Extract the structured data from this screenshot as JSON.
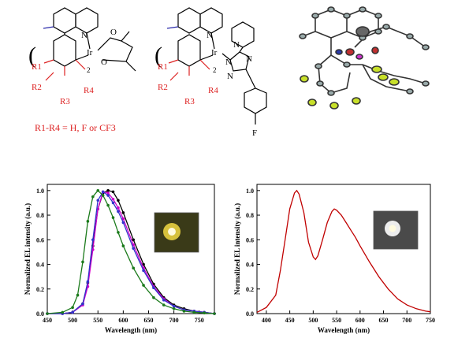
{
  "structures": {
    "left": {
      "atoms": [
        "N",
        "O",
        "O",
        "Ir",
        "2",
        "R1",
        "R2",
        "R3",
        "R4"
      ],
      "caption": "R1-R4 = H, F or CF3"
    },
    "middle": {
      "atoms": [
        "N",
        "N",
        "N",
        "N",
        "N",
        "Ir",
        "2",
        "F",
        "R1",
        "R2",
        "R3",
        "R4"
      ]
    }
  },
  "chart_data": [
    {
      "type": "line",
      "xlabel": "Wavelength (nm)",
      "ylabel": "Normalized EL intensity (a.u.)",
      "xlim": [
        450,
        780
      ],
      "ylim": [
        0,
        1.05
      ],
      "xticks": [
        450,
        500,
        550,
        600,
        650,
        700,
        750
      ],
      "yticks": [
        0.0,
        0.2,
        0.4,
        0.6,
        0.8,
        1.0
      ],
      "series": [
        {
          "color": "#000000",
          "x": [
            450,
            480,
            500,
            520,
            530,
            540,
            550,
            560,
            570,
            580,
            590,
            600,
            620,
            640,
            660,
            680,
            700,
            720,
            740,
            760,
            780
          ],
          "y": [
            0,
            0,
            0.01,
            0.08,
            0.25,
            0.55,
            0.85,
            0.98,
            1.0,
            0.99,
            0.92,
            0.82,
            0.6,
            0.4,
            0.24,
            0.13,
            0.07,
            0.04,
            0.02,
            0.01,
            0
          ]
        },
        {
          "color": "#cc00cc",
          "x": [
            450,
            480,
            500,
            520,
            530,
            540,
            550,
            560,
            570,
            580,
            590,
            600,
            620,
            640,
            660,
            680,
            700,
            720,
            740,
            760,
            780
          ],
          "y": [
            0,
            0,
            0.01,
            0.07,
            0.22,
            0.52,
            0.85,
            0.99,
            0.98,
            0.93,
            0.86,
            0.77,
            0.56,
            0.37,
            0.22,
            0.12,
            0.06,
            0.03,
            0.02,
            0.01,
            0
          ]
        },
        {
          "color": "#3333cc",
          "x": [
            450,
            480,
            500,
            520,
            530,
            540,
            550,
            560,
            570,
            580,
            590,
            600,
            620,
            640,
            660,
            680,
            700,
            720,
            740,
            760,
            780
          ],
          "y": [
            0,
            0,
            0.01,
            0.08,
            0.26,
            0.6,
            0.92,
            0.99,
            0.96,
            0.9,
            0.83,
            0.74,
            0.53,
            0.35,
            0.21,
            0.11,
            0.06,
            0.03,
            0.02,
            0.01,
            0
          ]
        },
        {
          "color": "#1a7a1a",
          "x": [
            450,
            480,
            500,
            510,
            520,
            530,
            540,
            550,
            560,
            570,
            580,
            590,
            600,
            620,
            640,
            660,
            680,
            700,
            720,
            740,
            760,
            780
          ],
          "y": [
            0,
            0.01,
            0.05,
            0.15,
            0.42,
            0.75,
            0.95,
            1.0,
            0.96,
            0.88,
            0.78,
            0.66,
            0.55,
            0.37,
            0.23,
            0.13,
            0.07,
            0.04,
            0.02,
            0.01,
            0.005,
            0
          ]
        }
      ]
    },
    {
      "type": "line",
      "xlabel": "Wavelength (nm)",
      "ylabel": "Normalized EL intensity (a.u.)",
      "xlim": [
        380,
        750
      ],
      "ylim": [
        0,
        1.05
      ],
      "xticks": [
        400,
        450,
        500,
        550,
        600,
        650,
        700,
        750
      ],
      "yticks": [
        0.0,
        0.2,
        0.4,
        0.6,
        0.8,
        1.0
      ],
      "series": [
        {
          "color": "#c00000",
          "x": [
            380,
            400,
            420,
            430,
            440,
            450,
            460,
            465,
            470,
            480,
            490,
            500,
            505,
            510,
            520,
            530,
            540,
            545,
            550,
            560,
            570,
            580,
            590,
            600,
            620,
            640,
            660,
            680,
            700,
            720,
            740,
            750
          ],
          "y": [
            0.01,
            0.05,
            0.15,
            0.35,
            0.6,
            0.85,
            0.98,
            1.0,
            0.97,
            0.82,
            0.58,
            0.46,
            0.44,
            0.47,
            0.6,
            0.74,
            0.83,
            0.85,
            0.84,
            0.8,
            0.74,
            0.68,
            0.62,
            0.55,
            0.42,
            0.3,
            0.2,
            0.12,
            0.07,
            0.04,
            0.02,
            0.015
          ]
        }
      ]
    }
  ]
}
